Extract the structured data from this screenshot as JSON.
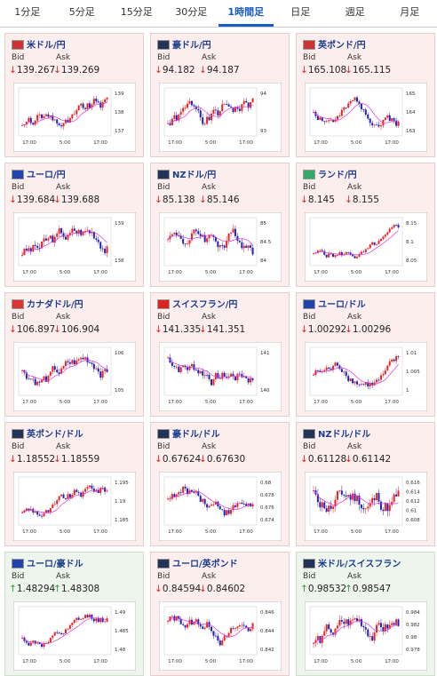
{
  "tabs": [
    "1分足",
    "5分足",
    "15分足",
    "30分足",
    "1時間足",
    "日足",
    "週足",
    "月足"
  ],
  "active_tab": 4,
  "labels": {
    "bid": "Bid",
    "ask": "Ask"
  },
  "chart_xticks": [
    "17:00",
    "5:00",
    "17:00"
  ],
  "panels": [
    {
      "name": "米ドル/円",
      "trend": "down",
      "arrow": "↓",
      "bid": "139.267",
      "ask": "139.269",
      "yticks": [
        "139",
        "138",
        "137"
      ]
    },
    {
      "name": "豪ドル/円",
      "trend": "down",
      "arrow": "↓",
      "bid": "94.182",
      "ask": "94.187",
      "yticks": [
        "94",
        "93"
      ]
    },
    {
      "name": "英ポンド/円",
      "trend": "down",
      "arrow": "↓",
      "bid": "165.108",
      "ask": "165.115",
      "yticks": [
        "165",
        "164",
        "163"
      ]
    },
    {
      "name": "ユーロ/円",
      "trend": "down",
      "arrow": "↓",
      "bid": "139.684",
      "ask": "139.688",
      "yticks": [
        "139",
        "138"
      ]
    },
    {
      "name": "NZドル/円",
      "trend": "down",
      "arrow": "↓",
      "bid": "85.138",
      "ask": "85.146",
      "yticks": [
        "85",
        "84.5",
        "84"
      ]
    },
    {
      "name": "ランド/円",
      "trend": "down",
      "arrow": "↓",
      "bid": "8.145",
      "ask": "8.155",
      "yticks": [
        "8.15",
        "8.1",
        "8.05"
      ]
    },
    {
      "name": "カナダドル/円",
      "trend": "down",
      "arrow": "↓",
      "bid": "106.897",
      "ask": "106.904",
      "yticks": [
        "106",
        "105"
      ]
    },
    {
      "name": "スイスフラン/円",
      "trend": "down",
      "arrow": "↓",
      "bid": "141.335",
      "ask": "141.351",
      "yticks": [
        "141",
        "140"
      ]
    },
    {
      "name": "ユーロ/ドル",
      "trend": "down",
      "arrow": "↓",
      "bid": "1.00292",
      "ask": "1.00296",
      "yticks": [
        "1.01",
        "1.005",
        "1"
      ]
    },
    {
      "name": "英ポンド/ドル",
      "trend": "down",
      "arrow": "↓",
      "bid": "1.18552",
      "ask": "1.18559",
      "yticks": [
        "1.195",
        "1.19",
        "1.185"
      ]
    },
    {
      "name": "豪ドル/ドル",
      "trend": "down",
      "arrow": "↓",
      "bid": "0.67624",
      "ask": "0.67630",
      "yticks": [
        "0.68",
        "0.678",
        "0.676",
        "0.674"
      ]
    },
    {
      "name": "NZドル/ドル",
      "trend": "down",
      "arrow": "↓",
      "bid": "0.61128",
      "ask": "0.61142",
      "yticks": [
        "0.616",
        "0.614",
        "0.612",
        "0.61",
        "0.608"
      ]
    },
    {
      "name": "ユーロ/豪ドル",
      "trend": "up",
      "arrow": "↑",
      "bid": "1.48294",
      "ask": "1.48308",
      "yticks": [
        "1.49",
        "1.485",
        "1.48"
      ]
    },
    {
      "name": "ユーロ/英ポンド",
      "trend": "down",
      "arrow": "↓",
      "bid": "0.84594",
      "ask": "0.84602",
      "yticks": [
        "0.846",
        "0.844",
        "0.842"
      ]
    },
    {
      "name": "米ドル/スイスフラン",
      "trend": "up",
      "arrow": "↑",
      "bid": "0.98532",
      "ask": "0.98547",
      "yticks": [
        "0.984",
        "0.982",
        "0.98",
        "0.978"
      ]
    }
  ]
}
